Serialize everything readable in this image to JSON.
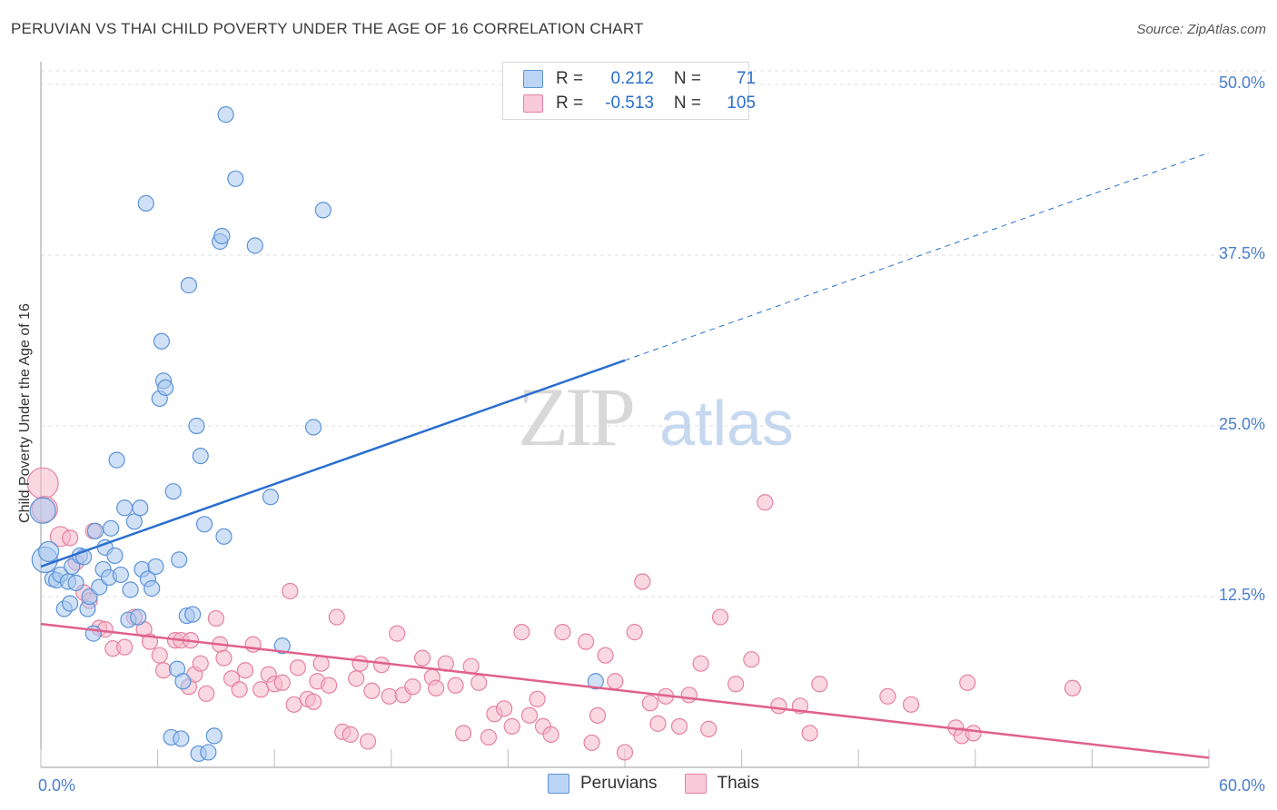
{
  "title": "PERUVIAN VS THAI CHILD POVERTY UNDER THE AGE OF 16 CORRELATION CHART",
  "source": "Source: ZipAtlas.com",
  "watermark": {
    "zip": "ZIP",
    "atlas": "atlas"
  },
  "colors": {
    "blue_fill": "#a9c9f0",
    "blue_stroke": "#5b93d8",
    "blue_line": "#2a6fd0",
    "pink_fill": "#f6b8cb",
    "pink_stroke": "#e5819f",
    "pink_line": "#e0608c",
    "tick_text": "#4a7fcf",
    "grid": "#dddddd"
  },
  "legend": {
    "rows": [
      {
        "r_label": "R =",
        "r_value": "0.212",
        "n_label": "N =",
        "n_value": "71"
      },
      {
        "r_label": "R =",
        "r_value": "-0.513",
        "n_label": "N =",
        "n_value": "105"
      }
    ]
  },
  "bottom_legend": [
    "Peruvians",
    "Thais"
  ],
  "chart_data": {
    "type": "scatter",
    "title": "PERUVIAN VS THAI CHILD POVERTY UNDER THE AGE OF 16 CORRELATION CHART",
    "xlabel": "",
    "ylabel": "Child Poverty Under the Age of 16",
    "xlim": [
      0,
      60
    ],
    "ylim": [
      0,
      51
    ],
    "x_tick_labels": [
      "0.0%",
      "60.0%"
    ],
    "y_ticks": [
      12.5,
      25.0,
      37.5,
      50.0
    ],
    "y_tick_labels": [
      "12.5%",
      "25.0%",
      "37.5%",
      "50.0%"
    ],
    "grid": true,
    "legend_position": "top-center",
    "series": [
      {
        "name": "Peruvians",
        "color": "#a9c9f0",
        "trend": {
          "x": [
            0,
            30
          ],
          "y": [
            14.7,
            29.8
          ],
          "dashed_to": [
            60,
            45.0
          ]
        },
        "points": [
          [
            0.1,
            18.8,
            "l"
          ],
          [
            0.2,
            15.2,
            "l"
          ],
          [
            0.4,
            15.8,
            "m"
          ],
          [
            0.6,
            13.8
          ],
          [
            0.8,
            13.7
          ],
          [
            1.0,
            14.1
          ],
          [
            1.2,
            11.6
          ],
          [
            1.4,
            13.6
          ],
          [
            1.5,
            12.0
          ],
          [
            1.6,
            14.7
          ],
          [
            1.8,
            13.5
          ],
          [
            2.0,
            15.5
          ],
          [
            2.2,
            15.4
          ],
          [
            2.4,
            11.6
          ],
          [
            2.5,
            12.5
          ],
          [
            2.7,
            9.8
          ],
          [
            2.8,
            17.3
          ],
          [
            3.0,
            13.2
          ],
          [
            3.2,
            14.5
          ],
          [
            3.3,
            16.1
          ],
          [
            3.5,
            13.9
          ],
          [
            3.6,
            17.5
          ],
          [
            3.8,
            15.5
          ],
          [
            3.9,
            22.5
          ],
          [
            4.1,
            14.1
          ],
          [
            4.3,
            19.0
          ],
          [
            4.5,
            10.8
          ],
          [
            4.6,
            13.0
          ],
          [
            4.8,
            18.0
          ],
          [
            5.0,
            11.0
          ],
          [
            5.1,
            19.0
          ],
          [
            5.2,
            14.5
          ],
          [
            5.4,
            41.3
          ],
          [
            5.5,
            13.8
          ],
          [
            5.7,
            13.1
          ],
          [
            5.9,
            14.7
          ],
          [
            6.1,
            27.0
          ],
          [
            6.2,
            31.2
          ],
          [
            6.3,
            28.3
          ],
          [
            6.4,
            27.8
          ],
          [
            6.7,
            2.2
          ],
          [
            6.8,
            20.2
          ],
          [
            7.0,
            7.2
          ],
          [
            7.1,
            15.2
          ],
          [
            7.2,
            2.1
          ],
          [
            7.3,
            6.3
          ],
          [
            7.5,
            11.1
          ],
          [
            7.6,
            35.3
          ],
          [
            7.8,
            11.2
          ],
          [
            8.0,
            25.0
          ],
          [
            8.1,
            1.0
          ],
          [
            8.2,
            22.8
          ],
          [
            8.4,
            17.8
          ],
          [
            8.6,
            1.1
          ],
          [
            8.9,
            2.3
          ],
          [
            9.2,
            38.5
          ],
          [
            9.3,
            38.9
          ],
          [
            9.4,
            16.9
          ],
          [
            9.5,
            47.8
          ],
          [
            10.0,
            43.1
          ],
          [
            11.0,
            38.2
          ],
          [
            11.8,
            19.8
          ],
          [
            12.4,
            8.9
          ],
          [
            14.0,
            24.9
          ],
          [
            14.5,
            40.8
          ],
          [
            28.5,
            6.3
          ]
        ]
      },
      {
        "name": "Thais",
        "color": "#f6b8cb",
        "trend": {
          "x": [
            0,
            60
          ],
          "y": [
            10.5,
            0.7
          ]
        },
        "points": [
          [
            0.1,
            20.8,
            "xl"
          ],
          [
            0.2,
            18.9,
            "l"
          ],
          [
            1.0,
            16.9,
            "m"
          ],
          [
            1.5,
            16.8
          ],
          [
            1.8,
            15.0
          ],
          [
            2.2,
            12.8
          ],
          [
            2.5,
            12.2
          ],
          [
            2.7,
            17.3
          ],
          [
            3.0,
            10.2
          ],
          [
            3.3,
            10.1
          ],
          [
            3.7,
            8.7
          ],
          [
            4.3,
            8.8
          ],
          [
            4.8,
            11.0
          ],
          [
            5.3,
            10.1
          ],
          [
            5.6,
            9.2
          ],
          [
            6.1,
            8.2
          ],
          [
            6.3,
            7.1
          ],
          [
            6.9,
            9.3
          ],
          [
            7.2,
            9.3
          ],
          [
            7.6,
            5.9
          ],
          [
            7.7,
            9.3
          ],
          [
            7.9,
            6.8
          ],
          [
            8.2,
            7.6
          ],
          [
            8.5,
            5.4
          ],
          [
            9.0,
            10.9
          ],
          [
            9.2,
            9.0
          ],
          [
            9.4,
            8.0
          ],
          [
            9.8,
            6.5
          ],
          [
            10.2,
            5.7
          ],
          [
            10.5,
            7.1
          ],
          [
            10.9,
            9.0
          ],
          [
            11.3,
            5.7
          ],
          [
            11.7,
            6.8
          ],
          [
            12.0,
            6.1
          ],
          [
            12.4,
            6.2
          ],
          [
            12.8,
            12.9
          ],
          [
            13.0,
            4.6
          ],
          [
            13.2,
            7.3
          ],
          [
            13.7,
            5.0
          ],
          [
            14.0,
            4.8
          ],
          [
            14.2,
            6.3
          ],
          [
            14.4,
            7.6
          ],
          [
            14.8,
            6.0
          ],
          [
            15.2,
            11.0
          ],
          [
            15.5,
            2.6
          ],
          [
            15.9,
            2.4
          ],
          [
            16.2,
            6.5
          ],
          [
            16.4,
            7.6
          ],
          [
            16.8,
            1.9
          ],
          [
            17.0,
            5.6
          ],
          [
            17.5,
            7.5
          ],
          [
            17.9,
            5.2
          ],
          [
            18.3,
            9.8
          ],
          [
            18.6,
            5.3
          ],
          [
            19.1,
            5.9
          ],
          [
            19.6,
            8.0
          ],
          [
            20.1,
            6.6
          ],
          [
            20.3,
            5.8
          ],
          [
            20.8,
            7.6
          ],
          [
            21.3,
            6.0
          ],
          [
            21.7,
            2.5
          ],
          [
            22.1,
            7.4
          ],
          [
            22.5,
            6.2
          ],
          [
            23.0,
            2.2
          ],
          [
            23.3,
            3.9
          ],
          [
            23.8,
            4.3
          ],
          [
            24.2,
            3.0
          ],
          [
            24.7,
            9.9
          ],
          [
            25.1,
            3.8
          ],
          [
            25.5,
            5.0
          ],
          [
            25.8,
            3.0
          ],
          [
            26.2,
            2.4
          ],
          [
            26.8,
            9.9
          ],
          [
            28.0,
            9.2
          ],
          [
            28.3,
            1.8
          ],
          [
            28.6,
            3.8
          ],
          [
            29.0,
            8.2
          ],
          [
            29.5,
            6.3
          ],
          [
            30.0,
            1.1
          ],
          [
            30.5,
            9.9
          ],
          [
            30.9,
            13.6
          ],
          [
            31.3,
            4.7
          ],
          [
            31.7,
            3.2
          ],
          [
            32.1,
            5.2
          ],
          [
            32.8,
            3.0
          ],
          [
            33.3,
            5.3
          ],
          [
            33.9,
            7.6
          ],
          [
            34.3,
            2.8
          ],
          [
            34.9,
            11.0
          ],
          [
            35.7,
            6.1
          ],
          [
            36.5,
            7.9
          ],
          [
            37.2,
            19.4
          ],
          [
            37.9,
            4.5
          ],
          [
            39.0,
            4.5
          ],
          [
            39.5,
            2.5
          ],
          [
            40.0,
            6.1
          ],
          [
            43.5,
            5.2
          ],
          [
            44.7,
            4.6
          ],
          [
            47.0,
            2.9
          ],
          [
            47.3,
            2.3
          ],
          [
            47.6,
            6.2
          ],
          [
            47.9,
            2.5
          ],
          [
            53.0,
            5.8
          ]
        ]
      }
    ]
  }
}
